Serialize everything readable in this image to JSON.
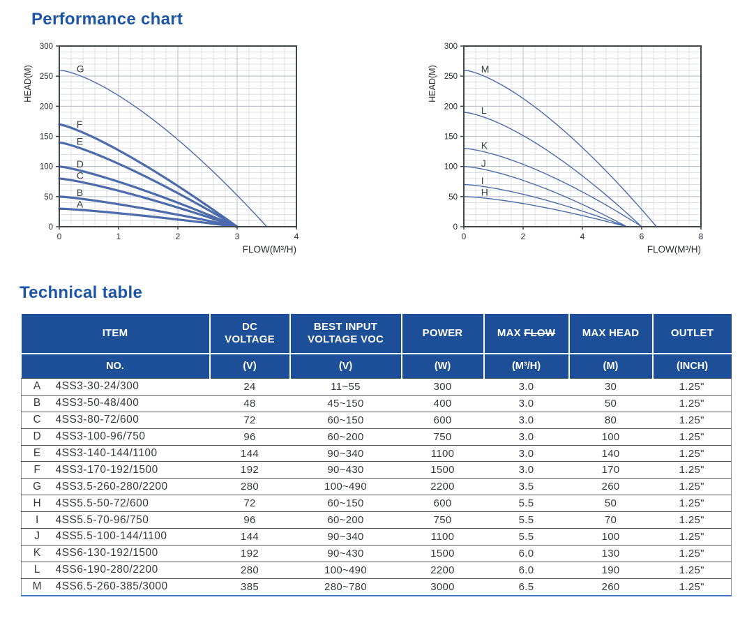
{
  "performance": {
    "title": "Performance chart"
  },
  "technical": {
    "title": "Technical table",
    "header": {
      "item_label": "ITEM",
      "item_unit": "NO.",
      "columns": [
        {
          "key": "dc_voltage",
          "label": "DC\nVOLTAGE",
          "unit": "(V)"
        },
        {
          "key": "best_input",
          "label": "BEST INPUT\nVOLTAGE VOC",
          "unit": "(V)"
        },
        {
          "key": "power",
          "label": "POWER",
          "unit": "(W)"
        },
        {
          "key": "max_flow",
          "label": "MAX ",
          "strike": "FLOW",
          "unit": "(M³/H)"
        },
        {
          "key": "max_head",
          "label": "MAX HEAD",
          "unit": "(M)"
        },
        {
          "key": "outlet",
          "label": "OUTLET",
          "unit": "(INCH)"
        }
      ]
    },
    "rows": [
      {
        "no": "A",
        "item": "4SS3-30-24/300",
        "dc_voltage": "24",
        "best_input": "11~55",
        "power": "300",
        "max_flow": "3.0",
        "max_head": "30",
        "outlet": "1.25\""
      },
      {
        "no": "B",
        "item": "4SS3-50-48/400",
        "dc_voltage": "48",
        "best_input": "45~150",
        "power": "400",
        "max_flow": "3.0",
        "max_head": "50",
        "outlet": "1.25\""
      },
      {
        "no": "C",
        "item": "4SS3-80-72/600",
        "dc_voltage": "72",
        "best_input": "60~150",
        "power": "600",
        "max_flow": "3.0",
        "max_head": "80",
        "outlet": "1.25\""
      },
      {
        "no": "D",
        "item": "4SS3-100-96/750",
        "dc_voltage": "96",
        "best_input": "60~200",
        "power": "750",
        "max_flow": "3.0",
        "max_head": "100",
        "outlet": "1.25\""
      },
      {
        "no": "E",
        "item": "4SS3-140-144/1100",
        "dc_voltage": "144",
        "best_input": "90~340",
        "power": "1100",
        "max_flow": "3.0",
        "max_head": "140",
        "outlet": "1.25\""
      },
      {
        "no": "F",
        "item": "4SS3-170-192/1500",
        "dc_voltage": "192",
        "best_input": "90~430",
        "power": "1500",
        "max_flow": "3.0",
        "max_head": "170",
        "outlet": "1.25\""
      },
      {
        "no": "G",
        "item": "4SS3.5-260-280/2200",
        "dc_voltage": "280",
        "best_input": "100~490",
        "power": "2200",
        "max_flow": "3.5",
        "max_head": "260",
        "outlet": "1.25\""
      },
      {
        "no": "H",
        "item": "4SS5.5-50-72/600",
        "dc_voltage": "72",
        "best_input": "60~150",
        "power": "600",
        "max_flow": "5.5",
        "max_head": "50",
        "outlet": "1.25\""
      },
      {
        "no": "I",
        "item": "4SS5.5-70-96/750",
        "dc_voltage": "96",
        "best_input": "60~200",
        "power": "750",
        "max_flow": "5.5",
        "max_head": "70",
        "outlet": "1.25\""
      },
      {
        "no": "J",
        "item": "4SS5.5-100-144/1100",
        "dc_voltage": "144",
        "best_input": "90~340",
        "power": "1100",
        "max_flow": "5.5",
        "max_head": "100",
        "outlet": "1.25\""
      },
      {
        "no": "K",
        "item": "4SS6-130-192/1500",
        "dc_voltage": "192",
        "best_input": "90~430",
        "power": "1500",
        "max_flow": "6.0",
        "max_head": "130",
        "outlet": "1.25\""
      },
      {
        "no": "L",
        "item": "4SS6-190-280/2200",
        "dc_voltage": "280",
        "best_input": "100~490",
        "power": "2200",
        "max_flow": "6.0",
        "max_head": "190",
        "outlet": "1.25\""
      },
      {
        "no": "M",
        "item": "4SS6.5-260-385/3000",
        "dc_voltage": "385",
        "best_input": "280~780",
        "power": "3000",
        "max_flow": "6.5",
        "max_head": "260",
        "outlet": "1.25\""
      }
    ]
  },
  "colors": {
    "title_blue": "#1e55a6",
    "header_bg": "#1d4f98",
    "curve": "#4d6bab",
    "grid_minor": "#d4d7de",
    "grid_major": "#b9bec8",
    "axis": "#41454c",
    "text_dark": "#36393f",
    "table_bottom_border": "#3c79c2"
  },
  "chart_data": [
    {
      "type": "line",
      "title": "",
      "xlabel": "FLOW(M³/H)",
      "ylabel": "HEAD(M)",
      "xlim": [
        0,
        4
      ],
      "ylim": [
        0,
        300
      ],
      "xticks": [
        0,
        1,
        2,
        3,
        4
      ],
      "yticks": [
        0,
        50,
        100,
        150,
        200,
        250,
        300
      ],
      "x_minor_step": 0.2,
      "y_minor_step": 10,
      "grid": true,
      "legend": "curve labels A–G placed on lines",
      "series": [
        {
          "label": "A",
          "max_head": 30,
          "max_flow": 3.0,
          "x": [
            0,
            3.0
          ],
          "y": [
            30,
            0
          ],
          "weight": "thick"
        },
        {
          "label": "B",
          "max_head": 50,
          "max_flow": 3.0,
          "x": [
            0,
            3.0
          ],
          "y": [
            50,
            0
          ],
          "weight": "thick"
        },
        {
          "label": "C",
          "max_head": 80,
          "max_flow": 3.0,
          "x": [
            0,
            3.0
          ],
          "y": [
            80,
            0
          ],
          "weight": "thick"
        },
        {
          "label": "D",
          "max_head": 100,
          "max_flow": 3.0,
          "x": [
            0,
            3.0
          ],
          "y": [
            100,
            0
          ],
          "weight": "thick"
        },
        {
          "label": "E",
          "max_head": 140,
          "max_flow": 3.0,
          "x": [
            0,
            3.0
          ],
          "y": [
            140,
            0
          ],
          "weight": "thick"
        },
        {
          "label": "F",
          "max_head": 170,
          "max_flow": 3.0,
          "x": [
            0,
            3.0
          ],
          "y": [
            170,
            0
          ],
          "weight": "thick"
        },
        {
          "label": "G",
          "max_head": 260,
          "max_flow": 3.5,
          "x": [
            0,
            3.5
          ],
          "y": [
            260,
            0
          ],
          "weight": "thin"
        }
      ]
    },
    {
      "type": "line",
      "title": "",
      "xlabel": "FLOW(M³/H)",
      "ylabel": "HEAD(M)",
      "xlim": [
        0,
        8
      ],
      "ylim": [
        0,
        300
      ],
      "xticks": [
        0,
        2,
        4,
        6,
        8
      ],
      "yticks": [
        0,
        50,
        100,
        150,
        200,
        250,
        300
      ],
      "x_minor_step": 0.4,
      "y_minor_step": 10,
      "grid": true,
      "legend": "curve labels H–M placed on lines",
      "series": [
        {
          "label": "H",
          "max_head": 50,
          "max_flow": 5.5,
          "x": [
            0,
            5.5
          ],
          "y": [
            50,
            0
          ],
          "weight": "thin"
        },
        {
          "label": "I",
          "max_head": 70,
          "max_flow": 5.5,
          "x": [
            0,
            5.5
          ],
          "y": [
            70,
            0
          ],
          "weight": "thin"
        },
        {
          "label": "J",
          "max_head": 100,
          "max_flow": 5.5,
          "x": [
            0,
            5.5
          ],
          "y": [
            100,
            0
          ],
          "weight": "thin"
        },
        {
          "label": "K",
          "max_head": 130,
          "max_flow": 6.0,
          "x": [
            0,
            6.0
          ],
          "y": [
            130,
            0
          ],
          "weight": "thin"
        },
        {
          "label": "L",
          "max_head": 190,
          "max_flow": 6.0,
          "x": [
            0,
            6.0
          ],
          "y": [
            190,
            0
          ],
          "weight": "thin"
        },
        {
          "label": "M",
          "max_head": 260,
          "max_flow": 6.5,
          "x": [
            0,
            6.5
          ],
          "y": [
            260,
            0
          ],
          "weight": "thin"
        }
      ]
    }
  ]
}
